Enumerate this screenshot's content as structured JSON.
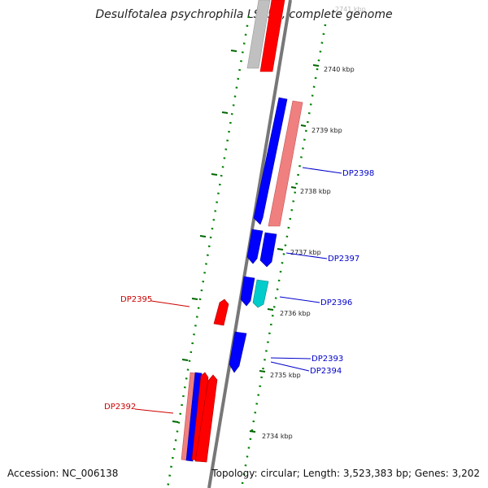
{
  "title": "Desulfotalea psychrophila LSv54, complete genome",
  "footer": {
    "accession": "Accession: NC_006138",
    "summary": "Topology: circular; Length: 3,523,383 bp; Genes: 3,202"
  },
  "colors": {
    "forward": "#0000ff",
    "reverse": "#ff0000",
    "pink": "#f08080",
    "grey": "#bbbbbb",
    "cyan": "#00cccc",
    "backbone": "#777777",
    "tick": "#007700"
  },
  "scale_labels": [
    "2741 kbp",
    "2740 kbp",
    "2739 kbp",
    "2738 kbp",
    "2737 kbp",
    "2736 kbp",
    "2735 kbp",
    "2734 kbp"
  ],
  "gene_labels": [
    {
      "text": "DP2398",
      "color": "#0000cc"
    },
    {
      "text": "DP2397",
      "color": "#0000cc"
    },
    {
      "text": "DP2396",
      "color": "#0000cc"
    },
    {
      "text": "DP2395",
      "color": "#cc0000"
    },
    {
      "text": "DP2393",
      "color": "#0000cc"
    },
    {
      "text": "DP2394",
      "color": "#0000cc"
    },
    {
      "text": "DP2392",
      "color": "#cc0000"
    }
  ]
}
